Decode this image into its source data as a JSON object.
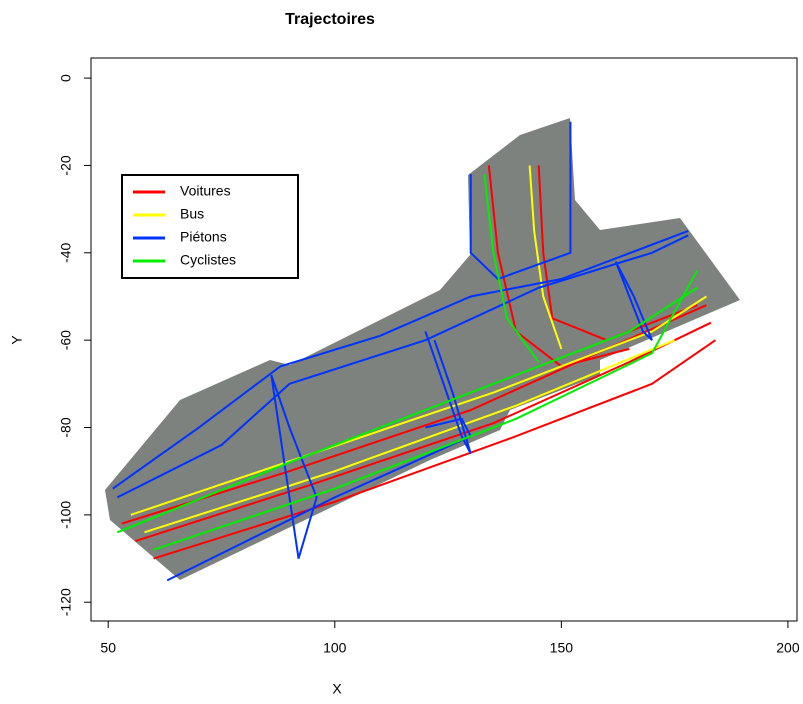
{
  "chart_data": {
    "type": "trajectory",
    "title": "Trajectoires",
    "x_label": "X",
    "y_label": "Y",
    "xlim": [
      46.2,
      202
    ],
    "ylim": [
      -124.3,
      4.6
    ],
    "xticks": [
      50,
      100,
      150,
      200
    ],
    "yticks": [
      0,
      -20,
      -40,
      -60,
      -80,
      -100,
      -120
    ],
    "legend": "upper left",
    "series": [
      {
        "name": "Voitures",
        "color": "#ff0000",
        "trajectories": [
          {
            "x": [
              53,
              90,
              130,
              160,
              182
            ],
            "y": [
              -102,
              -90,
              -76,
              -62,
              -52
            ]
          },
          {
            "x": [
              56,
              95,
              135,
              165,
              183
            ],
            "y": [
              -106,
              -93,
              -79,
              -65,
              -56
            ]
          },
          {
            "x": [
              60,
              100,
              140,
              170,
              184
            ],
            "y": [
              -110,
              -97,
              -82,
              -70,
              -60
            ]
          },
          {
            "x": [
              134,
              136,
              140,
              150,
              165
            ],
            "y": [
              -20,
              -40,
              -58,
              -66,
              -62
            ]
          },
          {
            "x": [
              145,
              146,
              148,
              160,
              180
            ],
            "y": [
              -20,
              -40,
              -55,
              -60,
              -52
            ]
          }
        ]
      },
      {
        "name": "Bus",
        "color": "#ffff00",
        "trajectories": [
          {
            "x": [
              55,
              95,
              135,
              170,
              182
            ],
            "y": [
              -100,
              -86,
              -72,
              -58,
              -50
            ]
          },
          {
            "x": [
              58,
              100,
              140,
              175
            ],
            "y": [
              -104,
              -90,
              -75,
              -60
            ]
          },
          {
            "x": [
              143,
              144,
              146,
              150
            ],
            "y": [
              -20,
              -35,
              -50,
              -62
            ]
          }
        ]
      },
      {
        "name": "Piétons",
        "color": "#0033ff",
        "trajectories": [
          {
            "x": [
              51,
              70,
              88,
              110,
              130,
              150,
              178
            ],
            "y": [
              -94,
              -80,
              -66,
              -59,
              -50,
              -46,
              -35
            ]
          },
          {
            "x": [
              52,
              75,
              90,
              120,
              145,
              170,
              178
            ],
            "y": [
              -96,
              -84,
              -70,
              -60,
              -48,
              -40,
              -36
            ]
          },
          {
            "x": [
              86,
              88,
              90,
              92,
              96,
              90,
              86
            ],
            "y": [
              -68,
              -82,
              -96,
              -110,
              -96,
              -80,
              -68
            ]
          },
          {
            "x": [
              120,
              124,
              128,
              130,
              126,
              122
            ],
            "y": [
              -58,
              -70,
              -82,
              -86,
              -72,
              -60
            ]
          },
          {
            "x": [
              162,
              165,
              168,
              170,
              166,
              162
            ],
            "y": [
              -42,
              -50,
              -58,
              -60,
              -50,
              -42
            ]
          },
          {
            "x": [
              130,
              130,
              136,
              152,
              152
            ],
            "y": [
              -22,
              -40,
              -46,
              -40,
              -10
            ]
          },
          {
            "x": [
              63,
              100,
              130,
              128,
              120
            ],
            "y": [
              -115,
              -96,
              -82,
              -78,
              -80
            ]
          }
        ]
      },
      {
        "name": "Cyclistes",
        "color": "#00ee00",
        "trajectories": [
          {
            "x": [
              52,
              90,
              130,
              165,
              180
            ],
            "y": [
              -104,
              -88,
              -72,
              -58,
              -48
            ]
          },
          {
            "x": [
              60,
              100,
              140,
              170,
              180
            ],
            "y": [
              -108,
              -94,
              -78,
              -63,
              -44
            ]
          },
          {
            "x": [
              133,
              135,
              138,
              145
            ],
            "y": [
              -22,
              -40,
              -55,
              -65
            ]
          }
        ]
      }
    ]
  }
}
